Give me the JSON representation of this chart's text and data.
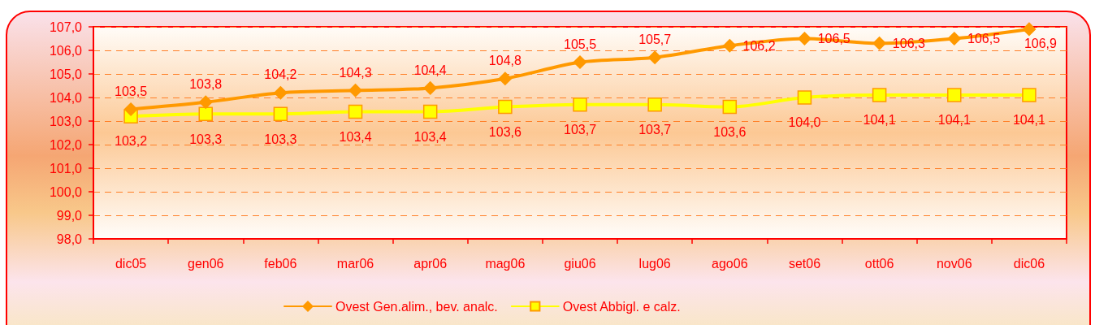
{
  "chart_data": {
    "type": "line",
    "categories": [
      "dic05",
      "gen06",
      "feb06",
      "mar06",
      "apr06",
      "mag06",
      "giu06",
      "lug06",
      "ago06",
      "set06",
      "ott06",
      "nov06",
      "dic06"
    ],
    "series": [
      {
        "name": "Ovest Gen.alim., bev. analc.",
        "color": "#ff9900",
        "marker": "diamond",
        "values": [
          103.5,
          103.8,
          104.2,
          104.3,
          104.4,
          104.8,
          105.5,
          105.7,
          106.2,
          106.5,
          106.3,
          106.5,
          106.9
        ],
        "value_labels": [
          "103,5",
          "103,8",
          "104,2",
          "104,3",
          "104,4",
          "104,8",
          "105,5",
          "105,7",
          "106,2",
          "106,5",
          "106,3",
          "106,5",
          "106,9"
        ]
      },
      {
        "name": "Ovest Abbigl. e calz.",
        "color": "#ffff00",
        "marker": "square",
        "values": [
          103.2,
          103.3,
          103.3,
          103.4,
          103.4,
          103.6,
          103.7,
          103.7,
          103.6,
          104.0,
          104.1,
          104.1,
          104.1
        ],
        "value_labels": [
          "103,2",
          "103,3",
          "103,3",
          "103,4",
          "103,4",
          "103,6",
          "103,7",
          "103,7",
          "103,6",
          "104,0",
          "104,1",
          "104,1",
          "104,1"
        ]
      }
    ],
    "ylim": [
      98,
      107
    ],
    "yticks": [
      {
        "value": 98,
        "label": "98,0"
      },
      {
        "value": 99,
        "label": "99,0"
      },
      {
        "value": 100,
        "label": "100,0"
      },
      {
        "value": 101,
        "label": "101,0"
      },
      {
        "value": 102,
        "label": "102,0"
      },
      {
        "value": 103,
        "label": "103,0"
      },
      {
        "value": 104,
        "label": "104,0"
      },
      {
        "value": 105,
        "label": "105,0"
      },
      {
        "value": 106,
        "label": "106,0"
      },
      {
        "value": 107,
        "label": "107,0"
      }
    ],
    "grid": "y",
    "legend": "bottom"
  }
}
